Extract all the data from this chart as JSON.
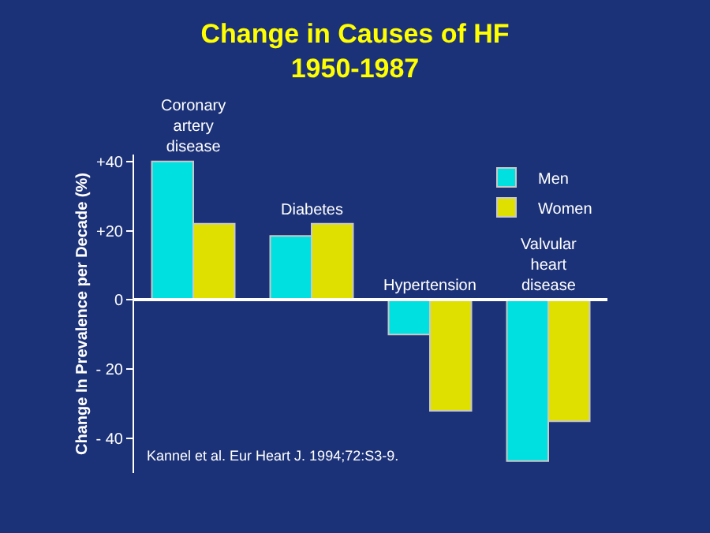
{
  "chart_data": {
    "type": "bar",
    "title": "Change in Causes of HF 1950-1987",
    "ylabel": "Change In Prevalence per Decade (%)",
    "categories": [
      "Coronary artery disease",
      "Diabetes",
      "Hypertension",
      "Valvular heart disease"
    ],
    "series": [
      {
        "name": "Men",
        "color": "#00e0e0",
        "values": [
          40,
          18.5,
          -10,
          -46.5
        ]
      },
      {
        "name": "Women",
        "color": "#e0e000",
        "values": [
          22,
          22,
          -32,
          -35
        ]
      }
    ],
    "ylim": [
      -50,
      42
    ],
    "yticks": [
      {
        "value": 40,
        "label": "+40"
      },
      {
        "value": 20,
        "label": "+20"
      },
      0,
      {
        "value": -20,
        "label": "- 20"
      },
      {
        "value": -40,
        "label": "- 40"
      }
    ],
    "tick_labels": "y",
    "legend": "top right",
    "annotations": [
      "Kannel et al. Eur Heart J. 1994;72:S3-9."
    ]
  }
}
